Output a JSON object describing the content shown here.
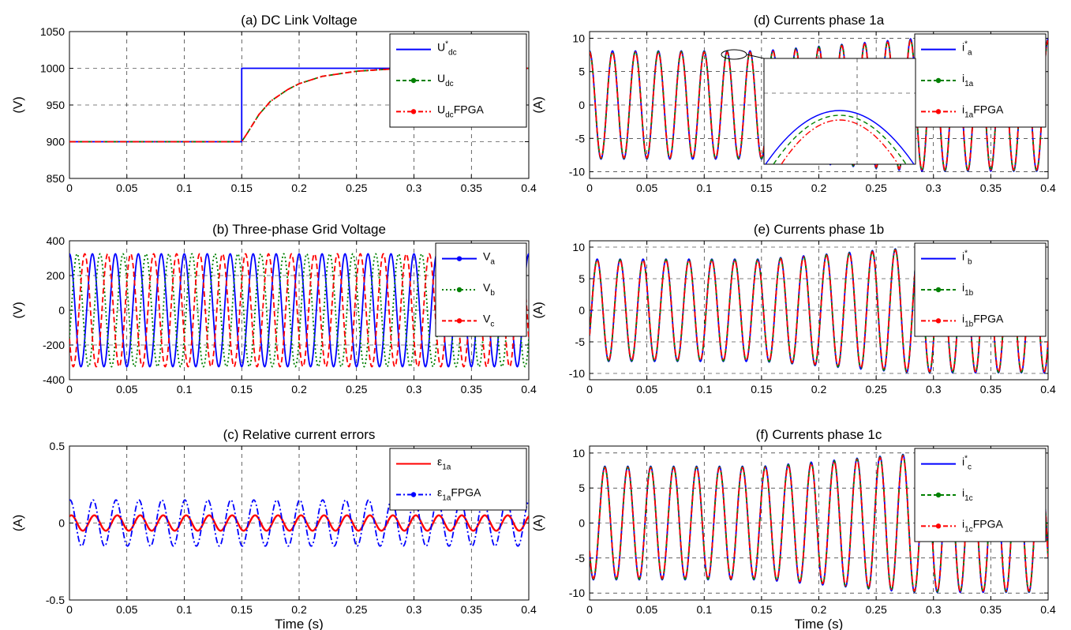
{
  "chart_data": [
    {
      "id": "a",
      "type": "line",
      "title": "(a)  DC Link Voltage",
      "ylabel": "(V)",
      "xlabel": "",
      "xlim": [
        0,
        0.4
      ],
      "ylim": [
        850,
        1050
      ],
      "xticks": [
        0,
        0.05,
        0.1,
        0.15,
        0.2,
        0.25,
        0.3,
        0.35,
        0.4
      ],
      "xtick_labels": [
        "0",
        "0.05",
        "0.1",
        "0.15",
        "0.2",
        "0.25",
        "0.3",
        "0.35",
        "0.4"
      ],
      "yticks": [
        850,
        900,
        950,
        1000,
        1050
      ],
      "ytick_labels": [
        "850",
        "900",
        "950",
        "1000",
        "1050"
      ],
      "grid": true,
      "legend_position": "top-right",
      "series": [
        {
          "name": "U*dc",
          "base": "U",
          "sup": "*",
          "sub": "dc",
          "suffix": "",
          "color": "#0000ff",
          "style": "solid",
          "marker": false,
          "x": [
            0,
            0.15,
            0.15,
            0.4
          ],
          "y": [
            900,
            900,
            1000,
            1000
          ]
        },
        {
          "name": "Udc",
          "base": "U",
          "sup": "",
          "sub": "dc",
          "suffix": "",
          "color": "#008000",
          "style": "dashed",
          "marker": true,
          "x": [
            0,
            0.15,
            0.155,
            0.165,
            0.175,
            0.19,
            0.2,
            0.22,
            0.25,
            0.28,
            0.3,
            0.35,
            0.4
          ],
          "y": [
            900,
            900,
            912,
            937,
            955,
            971,
            979,
            989,
            996,
            999,
            1000,
            1000,
            1000
          ]
        },
        {
          "name": "UdcFPGA",
          "base": "U",
          "sup": "",
          "sub": "dc",
          "suffix": "FPGA",
          "color": "#ff0000",
          "style": "dashdot",
          "marker": true,
          "x": [
            0,
            0.15,
            0.155,
            0.165,
            0.175,
            0.19,
            0.2,
            0.22,
            0.25,
            0.28,
            0.3,
            0.35,
            0.4
          ],
          "y": [
            900,
            900,
            912,
            937,
            955,
            971,
            979,
            989,
            996,
            999,
            1000,
            1000,
            1000
          ]
        }
      ]
    },
    {
      "id": "b",
      "type": "line",
      "title": "(b)  Three-phase Grid Voltage",
      "ylabel": "(V)",
      "xlabel": "",
      "xlim": [
        0,
        0.4
      ],
      "ylim": [
        -400,
        400
      ],
      "xticks": [
        0,
        0.05,
        0.1,
        0.15,
        0.2,
        0.25,
        0.3,
        0.35,
        0.4
      ],
      "xtick_labels": [
        "0",
        "0.05",
        "0.1",
        "0.15",
        "0.2",
        "0.25",
        "0.3",
        "0.35",
        "0.4"
      ],
      "yticks": [
        -400,
        -200,
        0,
        200,
        400
      ],
      "ytick_labels": [
        "-400",
        "-200",
        "0",
        "200",
        "400"
      ],
      "grid": true,
      "legend_position": "top-right",
      "series": [
        {
          "name": "Va",
          "base": "V",
          "sup": "",
          "sub": "a",
          "suffix": "",
          "color": "#0000ff",
          "style": "solid",
          "marker": true,
          "wave": {
            "freq": 50,
            "phase_deg": 90,
            "amp": [
              [
                0,
                325
              ],
              [
                0.4,
                325
              ]
            ]
          }
        },
        {
          "name": "Vb",
          "base": "V",
          "sup": "",
          "sub": "b",
          "suffix": "",
          "color": "#008000",
          "style": "dotted",
          "marker": true,
          "wave": {
            "freq": 50,
            "phase_deg": -30,
            "amp": [
              [
                0,
                325
              ],
              [
                0.4,
                325
              ]
            ]
          }
        },
        {
          "name": "Vc",
          "base": "V",
          "sup": "",
          "sub": "c",
          "suffix": "",
          "color": "#ff0000",
          "style": "dashed",
          "marker": true,
          "wave": {
            "freq": 50,
            "phase_deg": 210,
            "amp": [
              [
                0,
                325
              ],
              [
                0.4,
                325
              ]
            ]
          }
        }
      ]
    },
    {
      "id": "c",
      "type": "line",
      "title": "(c)   Relative current errors",
      "ylabel": "(A)",
      "xlabel": "Time (s)",
      "xlim": [
        0,
        0.4
      ],
      "ylim": [
        -0.5,
        0.5
      ],
      "xticks": [
        0,
        0.05,
        0.1,
        0.15,
        0.2,
        0.25,
        0.3,
        0.35,
        0.4
      ],
      "xtick_labels": [
        "0",
        "0.05",
        "0.1",
        "0.15",
        "0.2",
        "0.25",
        "0.3",
        "0.35",
        "0.4"
      ],
      "yticks": [
        -0.5,
        0,
        0.5
      ],
      "ytick_labels": [
        "-0.5",
        "0",
        "0.5"
      ],
      "grid": true,
      "legend_position": "top-right",
      "series": [
        {
          "name": "ε1a",
          "base": "ε",
          "sup": "",
          "sub": "1a",
          "suffix": "",
          "color": "#ff0000",
          "style": "solid",
          "width": 2.4,
          "marker": false,
          "wave": {
            "freq": 50,
            "phase_deg": 60,
            "amp": [
              [
                0,
                0.05
              ],
              [
                0.4,
                0.05
              ]
            ]
          }
        },
        {
          "name": "ε1aFPGA",
          "base": "ε",
          "sup": "",
          "sub": "1a",
          "suffix": "FPGA",
          "color": "#0000ff",
          "style": "dashdot",
          "marker": true,
          "wave": {
            "freq": 50,
            "phase_deg": 80,
            "amp": [
              [
                0,
                0.15
              ],
              [
                0.4,
                0.15
              ]
            ]
          }
        }
      ]
    },
    {
      "id": "d",
      "type": "line",
      "title": "(d)   Currents phase 1a",
      "ylabel": "(A)",
      "xlabel": "",
      "xlim": [
        0,
        0.4
      ],
      "ylim": [
        -11,
        11
      ],
      "xticks": [
        0,
        0.05,
        0.1,
        0.15,
        0.2,
        0.25,
        0.3,
        0.35,
        0.4
      ],
      "xtick_labels": [
        "0",
        "0.05",
        "0.1",
        "0.15",
        "0.2",
        "0.25",
        "0.3",
        "0.35",
        "0.4"
      ],
      "yticks": [
        -10,
        -5,
        0,
        5,
        10
      ],
      "ytick_labels": [
        "-10",
        "-5",
        "0",
        "5",
        "10"
      ],
      "grid": true,
      "legend_position": "top-right",
      "inset": true,
      "series": [
        {
          "name": "i*a",
          "base": "i",
          "sup": "*",
          "sub": "a",
          "suffix": "",
          "color": "#0000ff",
          "style": "solid",
          "marker": false,
          "wave": {
            "freq": 50,
            "phase_deg": 90,
            "amp": [
              [
                0,
                8.1
              ],
              [
                0.15,
                8.1
              ],
              [
                0.28,
                9.9
              ],
              [
                0.4,
                9.9
              ]
            ]
          }
        },
        {
          "name": "i1a",
          "base": "i",
          "sup": "",
          "sub": "1a",
          "suffix": "",
          "color": "#008000",
          "style": "dashed",
          "marker": true,
          "wave": {
            "freq": 50,
            "phase_deg": 90,
            "amp": [
              [
                0,
                8.0
              ],
              [
                0.15,
                8.0
              ],
              [
                0.28,
                9.8
              ],
              [
                0.4,
                9.8
              ]
            ]
          }
        },
        {
          "name": "i1aFPGA",
          "base": "i",
          "sup": "",
          "sub": "1a",
          "suffix": "FPGA",
          "color": "#ff0000",
          "style": "dashdot",
          "marker": true,
          "wave": {
            "freq": 50,
            "phase_deg": 90,
            "amp": [
              [
                0,
                7.9
              ],
              [
                0.15,
                7.9
              ],
              [
                0.28,
                9.7
              ],
              [
                0.4,
                9.7
              ]
            ]
          }
        }
      ]
    },
    {
      "id": "e",
      "type": "line",
      "title": "(e)   Currents  phase 1b",
      "ylabel": "(A)",
      "xlabel": "",
      "xlim": [
        0,
        0.4
      ],
      "ylim": [
        -11,
        11
      ],
      "xticks": [
        0,
        0.05,
        0.1,
        0.15,
        0.2,
        0.25,
        0.3,
        0.35,
        0.4
      ],
      "xtick_labels": [
        "0",
        "0.05",
        "0.1",
        "0.15",
        "0.2",
        "0.25",
        "0.3",
        "0.35",
        "0.4"
      ],
      "yticks": [
        -10,
        -5,
        0,
        5,
        10
      ],
      "ytick_labels": [
        "-10",
        "-5",
        "0",
        "5",
        "10"
      ],
      "grid": true,
      "legend_position": "top-right",
      "series": [
        {
          "name": "i*b",
          "base": "i",
          "sup": "*",
          "sub": "b",
          "suffix": "",
          "color": "#0000ff",
          "style": "solid",
          "marker": false,
          "wave": {
            "freq": 50,
            "phase_deg": -30,
            "amp": [
              [
                0,
                8.1
              ],
              [
                0.15,
                8.1
              ],
              [
                0.28,
                9.9
              ],
              [
                0.4,
                9.9
              ]
            ]
          }
        },
        {
          "name": "i1b",
          "base": "i",
          "sup": "",
          "sub": "1b",
          "suffix": "",
          "color": "#008000",
          "style": "dashed",
          "marker": true,
          "wave": {
            "freq": 50,
            "phase_deg": -30,
            "amp": [
              [
                0,
                8.0
              ],
              [
                0.15,
                8.0
              ],
              [
                0.28,
                9.8
              ],
              [
                0.4,
                9.8
              ]
            ]
          }
        },
        {
          "name": "i1bFPGA",
          "base": "i",
          "sup": "",
          "sub": "1b",
          "suffix": "FPGA",
          "color": "#ff0000",
          "style": "dashdot",
          "marker": true,
          "wave": {
            "freq": 50,
            "phase_deg": -30,
            "amp": [
              [
                0,
                7.9
              ],
              [
                0.15,
                7.9
              ],
              [
                0.28,
                9.7
              ],
              [
                0.4,
                9.7
              ]
            ]
          }
        }
      ]
    },
    {
      "id": "f",
      "type": "line",
      "title": "(f)   Currents  phase 1c",
      "ylabel": "(A)",
      "xlabel": "Time (s)",
      "xlim": [
        0,
        0.4
      ],
      "ylim": [
        -11,
        11
      ],
      "xticks": [
        0,
        0.05,
        0.1,
        0.15,
        0.2,
        0.25,
        0.3,
        0.35,
        0.4
      ],
      "xtick_labels": [
        "0",
        "0.05",
        "0.1",
        "0.15",
        "0.2",
        "0.25",
        "0.3",
        "0.35",
        "0.4"
      ],
      "yticks": [
        -10,
        -5,
        0,
        5,
        10
      ],
      "ytick_labels": [
        "-10",
        "-5",
        "0",
        "5",
        "10"
      ],
      "grid": true,
      "legend_position": "top-right",
      "series": [
        {
          "name": "i*c",
          "base": "i",
          "sup": "*",
          "sub": "c",
          "suffix": "",
          "color": "#0000ff",
          "style": "solid",
          "marker": false,
          "wave": {
            "freq": 50,
            "phase_deg": 210,
            "amp": [
              [
                0,
                8.1
              ],
              [
                0.15,
                8.1
              ],
              [
                0.28,
                9.9
              ],
              [
                0.4,
                9.9
              ]
            ]
          }
        },
        {
          "name": "i1c",
          "base": "i",
          "sup": "",
          "sub": "1c",
          "suffix": "",
          "color": "#008000",
          "style": "dashed",
          "marker": true,
          "wave": {
            "freq": 50,
            "phase_deg": 210,
            "amp": [
              [
                0,
                8.0
              ],
              [
                0.15,
                8.0
              ],
              [
                0.28,
                9.8
              ],
              [
                0.4,
                9.8
              ]
            ]
          }
        },
        {
          "name": "i1cFPGA",
          "base": "i",
          "sup": "",
          "sub": "1c",
          "suffix": "FPGA",
          "color": "#ff0000",
          "style": "dashdot",
          "marker": true,
          "wave": {
            "freq": 50,
            "phase_deg": 210,
            "amp": [
              [
                0,
                7.9
              ],
              [
                0.15,
                7.9
              ],
              [
                0.28,
                9.7
              ],
              [
                0.4,
                9.7
              ]
            ]
          }
        }
      ]
    }
  ]
}
